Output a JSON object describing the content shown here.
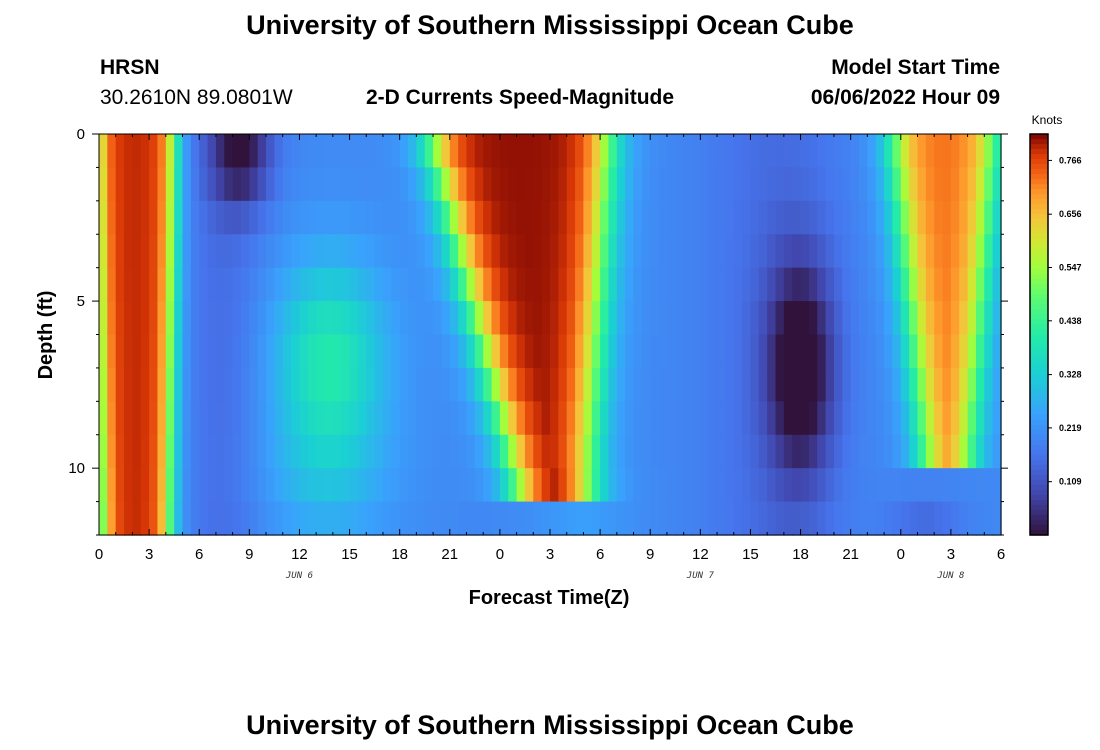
{
  "header": {
    "title_top": "University of Southern Mississippi Ocean Cube",
    "title_bottom": "University of Southern Mississippi Ocean Cube",
    "station": "HRSN",
    "coords": "30.2610N  89.0801W",
    "model_start_label": "Model Start Time",
    "model_start_value": "06/06/2022 Hour 09"
  },
  "chart_data": {
    "type": "heatmap",
    "title": "2-D Currents Speed-Magnitude",
    "xlabel": "Forecast Time(Z)",
    "ylabel": "Depth (ft)",
    "x_unit": "hours since 2022-06-06 00Z",
    "xlim": [
      0,
      54
    ],
    "ylim": [
      0,
      12
    ],
    "x_ticks": [
      0,
      3,
      6,
      9,
      12,
      15,
      18,
      21,
      24,
      27,
      30,
      33,
      36,
      39,
      42,
      45,
      48,
      51,
      54
    ],
    "x_tick_labels": [
      "0",
      "3",
      "6",
      "9",
      "12",
      "15",
      "18",
      "21",
      "0",
      "3",
      "6",
      "9",
      "12",
      "15",
      "18",
      "21",
      "0",
      "3",
      "6"
    ],
    "y_ticks": [
      0,
      5,
      10
    ],
    "y_tick_labels": [
      "0",
      "5",
      "10"
    ],
    "date_labels": [
      {
        "label": "JUN 6",
        "x": 12
      },
      {
        "label": "JUN 7",
        "x": 36
      },
      {
        "label": "JUN 8",
        "x": 51
      }
    ],
    "colorbar": {
      "unit": "Knots",
      "min": 0.0,
      "max": 0.82,
      "ticks": [
        0.766,
        0.656,
        0.547,
        0.438,
        0.328,
        0.219,
        0.109
      ],
      "tick_labels": [
        "0.766",
        "0.656",
        "0.547",
        "0.438",
        "0.328",
        "0.219",
        "0.109"
      ]
    },
    "grid": {
      "time_step_h": 0.5,
      "depth_levels_ft": [
        0.5,
        1.5,
        2.5,
        3.5,
        4.5,
        5.5,
        6.5,
        7.5,
        8.5,
        9.5,
        10.5,
        11.5
      ],
      "features": [
        {
          "desc": "strong current, full depth",
          "t0": 0,
          "t1": 4.5,
          "peak": 0.78
        },
        {
          "desc": "weak surface minimum",
          "t": 8.5,
          "depth": 0.5,
          "value": 0.04
        },
        {
          "desc": "mid-depth maximum",
          "t": 13.5,
          "depth": 7,
          "value": 0.4
        },
        {
          "desc": "strong current wedge",
          "t_surface": [
            20,
            30
          ],
          "t_depth": [
            25,
            28
          ],
          "peak": 0.8
        },
        {
          "desc": "deep minimum",
          "t": 42,
          "depth": 7,
          "value": 0.0
        },
        {
          "desc": "strong current wedge",
          "t_surface": [
            47.5,
            53.5
          ],
          "t_depth": [
            50,
            52
          ],
          "peak": 0.72
        }
      ]
    }
  }
}
